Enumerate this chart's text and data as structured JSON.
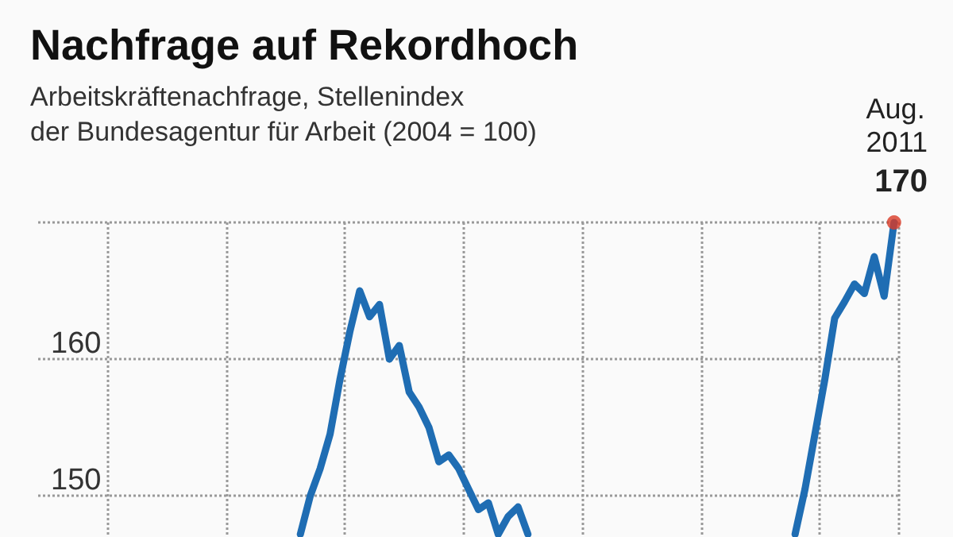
{
  "chart_data": {
    "type": "line",
    "title": "Nachfrage auf Rekordhoch",
    "subtitle": "Arbeitskräftenachfrage, Stellenindex\nder Bundesagentur für Arbeit (2004 = 100)",
    "categories": [
      null,
      null,
      null,
      null,
      null,
      null,
      null,
      null,
      null,
      null,
      null,
      null,
      null,
      null,
      null,
      null,
      null,
      null,
      null,
      null,
      null,
      null,
      null,
      null,
      null,
      null,
      null,
      null,
      null,
      null,
      null,
      null,
      null,
      null,
      null,
      null,
      null,
      null,
      null,
      null,
      null,
      null,
      null,
      null,
      null,
      null,
      null,
      null,
      null,
      null,
      null,
      null,
      null,
      null,
      null,
      null,
      null,
      null,
      null,
      null,
      null,
      null,
      null,
      null,
      null,
      null,
      null,
      null,
      null,
      null,
      null,
      null,
      null,
      null,
      null,
      null,
      null,
      null,
      null,
      null,
      null,
      null,
      null,
      null,
      null,
      null,
      null
    ],
    "series": [
      {
        "color": "#1f6db3",
        "values": [
          null,
          null,
          null,
          null,
          null,
          null,
          null,
          null,
          null,
          null,
          null,
          null,
          null,
          null,
          null,
          null,
          null,
          null,
          null,
          null,
          null,
          null,
          null,
          null,
          null,
          null,
          147.2,
          150,
          152,
          154.5,
          158.5,
          162,
          165,
          163.1,
          164,
          160,
          161,
          157.6,
          156.5,
          155,
          152.5,
          153,
          152,
          150.5,
          149,
          149.5,
          147.2,
          148.5,
          149.2,
          147.2,
          null,
          null,
          null,
          null,
          null,
          null,
          null,
          null,
          null,
          null,
          null,
          null,
          null,
          null,
          null,
          null,
          null,
          null,
          null,
          null,
          null,
          null,
          null,
          null,
          null,
          null,
          147.2,
          150.5,
          154.5,
          158.5,
          163,
          164.2,
          165.5,
          164.8,
          167.5,
          164.6,
          170
        ]
      },
      {
        "type": "scatter",
        "color": "#d93a26",
        "values": [
          null,
          null,
          null,
          null,
          null,
          null,
          null,
          null,
          null,
          null,
          null,
          null,
          null,
          null,
          null,
          null,
          null,
          null,
          null,
          null,
          null,
          null,
          null,
          null,
          null,
          null,
          null,
          null,
          null,
          null,
          null,
          null,
          null,
          null,
          null,
          null,
          null,
          null,
          null,
          null,
          null,
          null,
          null,
          null,
          null,
          null,
          null,
          null,
          null,
          null,
          null,
          null,
          null,
          null,
          null,
          null,
          null,
          null,
          null,
          null,
          null,
          null,
          null,
          null,
          null,
          null,
          null,
          null,
          null,
          null,
          null,
          null,
          null,
          null,
          null,
          null,
          null,
          null,
          null,
          null,
          null,
          null,
          null,
          null,
          null,
          null,
          170
        ]
      }
    ],
    "ylim": [
      147,
      170
    ],
    "yticks": [
      150,
      160,
      {
        "value": 170,
        "label": null
      }
    ],
    "grid": true,
    "tick_labels": "y",
    "annotations": [
      "Aug.\n2011",
      "170"
    ]
  }
}
